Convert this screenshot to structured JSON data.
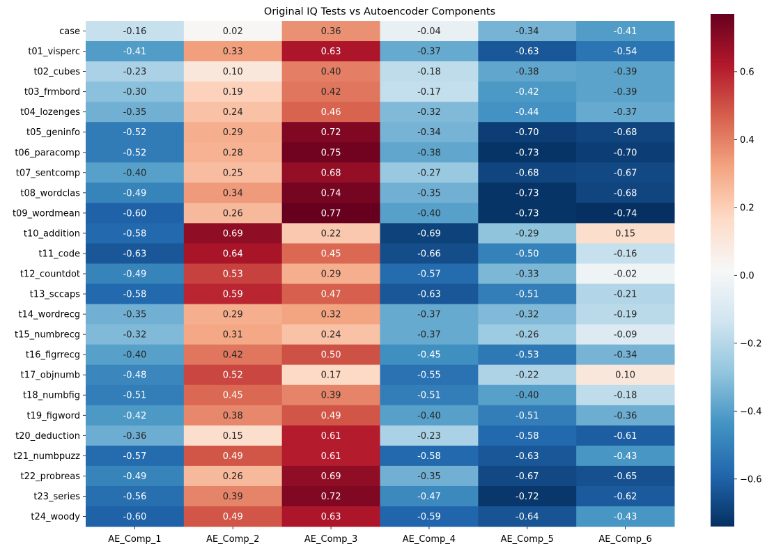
{
  "chart_data": {
    "type": "heatmap",
    "title": "Original IQ Tests vs Autoencoder Components",
    "xlabel": "",
    "ylabel": "",
    "colormap": "RdBu_r",
    "vmin": -0.74,
    "vmax": 0.77,
    "colorbar_ticks": [
      0.6,
      0.4,
      0.2,
      0.0,
      -0.2,
      -0.4,
      -0.6
    ],
    "colorbar_tick_labels": [
      "0.6",
      "0.4",
      "0.2",
      "0.0",
      "−0.2",
      "−0.4",
      "−0.6"
    ],
    "columns": [
      "AE_Comp_1",
      "AE_Comp_2",
      "AE_Comp_3",
      "AE_Comp_4",
      "AE_Comp_5",
      "AE_Comp_6"
    ],
    "rows": [
      "case",
      "t01_visperc",
      "t02_cubes",
      "t03_frmbord",
      "t04_lozenges",
      "t05_geninfo",
      "t06_paracomp",
      "t07_sentcomp",
      "t08_wordclas",
      "t09_wordmean",
      "t10_addition",
      "t11_code",
      "t12_countdot",
      "t13_sccaps",
      "t14_wordrecg",
      "t15_numbrecg",
      "t16_figrrecg",
      "t17_objnumb",
      "t18_numbfig",
      "t19_figword",
      "t20_deduction",
      "t21_numbpuzz",
      "t22_probreas",
      "t23_series",
      "t24_woody"
    ],
    "values": [
      [
        -0.16,
        0.02,
        0.36,
        -0.04,
        -0.34,
        -0.41
      ],
      [
        -0.41,
        0.33,
        0.63,
        -0.37,
        -0.63,
        -0.54
      ],
      [
        -0.23,
        0.1,
        0.4,
        -0.18,
        -0.38,
        -0.39
      ],
      [
        -0.3,
        0.19,
        0.42,
        -0.17,
        -0.42,
        -0.39
      ],
      [
        -0.35,
        0.24,
        0.46,
        -0.32,
        -0.44,
        -0.37
      ],
      [
        -0.52,
        0.29,
        0.72,
        -0.34,
        -0.7,
        -0.68
      ],
      [
        -0.52,
        0.28,
        0.75,
        -0.38,
        -0.73,
        -0.7
      ],
      [
        -0.4,
        0.25,
        0.68,
        -0.27,
        -0.68,
        -0.67
      ],
      [
        -0.49,
        0.34,
        0.74,
        -0.35,
        -0.73,
        -0.68
      ],
      [
        -0.6,
        0.26,
        0.77,
        -0.4,
        -0.73,
        -0.74
      ],
      [
        -0.58,
        0.69,
        0.22,
        -0.69,
        -0.29,
        0.15
      ],
      [
        -0.63,
        0.64,
        0.45,
        -0.66,
        -0.5,
        -0.16
      ],
      [
        -0.49,
        0.53,
        0.29,
        -0.57,
        -0.33,
        -0.02
      ],
      [
        -0.58,
        0.59,
        0.47,
        -0.63,
        -0.51,
        -0.21
      ],
      [
        -0.35,
        0.29,
        0.32,
        -0.37,
        -0.32,
        -0.19
      ],
      [
        -0.32,
        0.31,
        0.24,
        -0.37,
        -0.26,
        -0.09
      ],
      [
        -0.4,
        0.42,
        0.5,
        -0.45,
        -0.53,
        -0.34
      ],
      [
        -0.48,
        0.52,
        0.17,
        -0.55,
        -0.22,
        0.1
      ],
      [
        -0.51,
        0.45,
        0.39,
        -0.51,
        -0.4,
        -0.18
      ],
      [
        -0.42,
        0.38,
        0.49,
        -0.4,
        -0.51,
        -0.36
      ],
      [
        -0.36,
        0.15,
        0.61,
        -0.23,
        -0.58,
        -0.61
      ],
      [
        -0.57,
        0.49,
        0.61,
        -0.58,
        -0.63,
        -0.43
      ],
      [
        -0.49,
        0.26,
        0.69,
        -0.35,
        -0.67,
        -0.65
      ],
      [
        -0.56,
        0.39,
        0.72,
        -0.47,
        -0.72,
        -0.62
      ],
      [
        -0.6,
        0.49,
        0.63,
        -0.59,
        -0.64,
        -0.43
      ]
    ],
    "annotation_format": "0.00",
    "grid": false,
    "legend": "colorbar-right"
  }
}
